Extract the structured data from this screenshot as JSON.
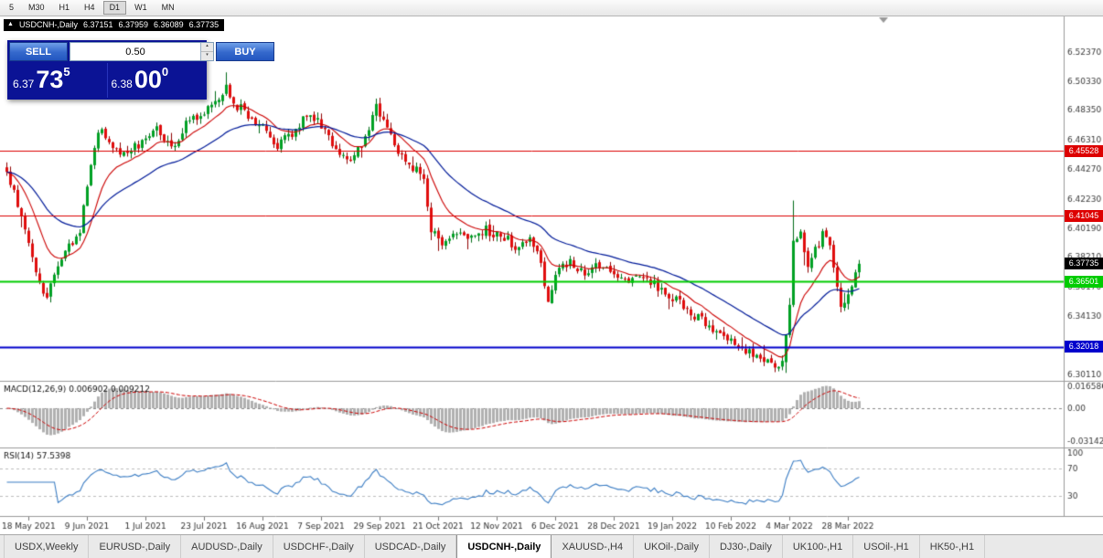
{
  "toolbar": {
    "timeframes": [
      {
        "label": "5"
      },
      {
        "label": "M30"
      },
      {
        "label": "H1"
      },
      {
        "label": "H4"
      },
      {
        "label": "D1",
        "active": true
      },
      {
        "label": "W1"
      },
      {
        "label": "MN"
      }
    ]
  },
  "chart_header": {
    "collapse_icon": "▲",
    "symbol": "USDCNH-,Daily",
    "open": "6.37151",
    "high": "6.37959",
    "low": "6.36089",
    "close": "6.37735"
  },
  "trade_panel": {
    "sell_label": "SELL",
    "buy_label": "BUY",
    "lot": "0.50",
    "spin_up_icon": "▴",
    "spin_down_icon": "▾",
    "sell_price": {
      "prefix": "6.37",
      "big": "73",
      "sup": "5"
    },
    "buy_price": {
      "prefix": "6.38",
      "big": "00",
      "sup": "0"
    }
  },
  "price_axis": {
    "labels": [
      "6.52370",
      "6.50330",
      "6.48350",
      "6.46310",
      "6.44270",
      "6.42230",
      "6.40190",
      "6.38210",
      "6.36170",
      "6.34130",
      "6.32090",
      "6.30110"
    ]
  },
  "hlines": [
    {
      "label": "6.45528",
      "price": 6.45528,
      "color": "#dd0000",
      "width": 1
    },
    {
      "label": "6.41045",
      "price": 6.41045,
      "color": "#dd0000",
      "width": 1
    },
    {
      "label": "6.36501",
      "price": 6.36501,
      "color": "#00cc00",
      "width": 2
    },
    {
      "label": "6.32018",
      "price": 6.32018,
      "color": "#0000cc",
      "width": 2
    }
  ],
  "current_price": {
    "label": "6.37735",
    "price": 6.37735,
    "color": "#000000"
  },
  "macd_panel": {
    "label": "MACD(12,26,9) 0.006902 0.009212",
    "axis_labels": [
      "0.016586",
      "0.00",
      "-0.03142"
    ]
  },
  "rsi_panel": {
    "label": "RSI(14) 57.5398",
    "axis_labels": [
      "100",
      "70",
      "30"
    ]
  },
  "time_axis": {
    "dates": [
      "18 May 2021",
      "9 Jun 2021",
      "1 Jul 2021",
      "23 Jul 2021",
      "16 Aug 2021",
      "7 Sep 2021",
      "29 Sep 2021",
      "21 Oct 2021",
      "12 Nov 2021",
      "6 Dec 2021",
      "28 Dec 2021",
      "19 Jan 2022",
      "10 Feb 2022",
      "4 Mar 2022",
      "28 Mar 2022"
    ]
  },
  "tabs": [
    {
      "label": "USDX,Weekly"
    },
    {
      "label": "EURUSD-,Daily"
    },
    {
      "label": "AUDUSD-,Daily"
    },
    {
      "label": "USDCHF-,Daily"
    },
    {
      "label": "USDCAD-,Daily"
    },
    {
      "label": "USDCNH-,Daily",
      "active": true
    },
    {
      "label": "XAUUSD-,H4"
    },
    {
      "label": "UKOil-,Daily"
    },
    {
      "label": "DJ30-,Daily"
    },
    {
      "label": "UK100-,H1"
    },
    {
      "label": "USOil-,H1"
    },
    {
      "label": "HK50-,H1"
    }
  ],
  "chart_data": {
    "type": "candlestick",
    "symbol": "USDCNH",
    "timeframe": "Daily",
    "candle_count": 234,
    "seed": 42,
    "last_close": 6.37735,
    "price_range": {
      "top": 6.548,
      "bottom": 6.2966
    },
    "up_color": "#00a124",
    "down_color": "#e00d0d",
    "ma_fast": {
      "period": 12,
      "color": "#cc0000"
    },
    "ma_slow": {
      "period": 34,
      "color": "#001a99"
    },
    "spike": {
      "index": 215,
      "high": 6.421
    },
    "date_tick_indices": [
      6,
      22,
      38,
      54,
      70,
      86,
      102,
      118,
      134,
      150,
      166,
      182,
      198,
      214,
      230
    ],
    "anchors": [
      [
        0,
        6.44
      ],
      [
        3,
        6.42
      ],
      [
        6,
        6.395
      ],
      [
        9,
        6.362
      ],
      [
        11,
        6.357
      ],
      [
        14,
        6.377
      ],
      [
        17,
        6.388
      ],
      [
        20,
        6.402
      ],
      [
        22,
        6.432
      ],
      [
        24,
        6.458
      ],
      [
        26,
        6.472
      ],
      [
        29,
        6.455
      ],
      [
        33,
        6.452
      ],
      [
        37,
        6.463
      ],
      [
        41,
        6.472
      ],
      [
        45,
        6.458
      ],
      [
        49,
        6.473
      ],
      [
        53,
        6.479
      ],
      [
        57,
        6.49
      ],
      [
        60,
        6.5
      ],
      [
        62,
        6.488
      ],
      [
        66,
        6.48
      ],
      [
        70,
        6.47
      ],
      [
        74,
        6.459
      ],
      [
        78,
        6.468
      ],
      [
        82,
        6.479
      ],
      [
        86,
        6.473
      ],
      [
        90,
        6.457
      ],
      [
        94,
        6.446
      ],
      [
        98,
        6.466
      ],
      [
        101,
        6.486
      ],
      [
        104,
        6.468
      ],
      [
        108,
        6.45
      ],
      [
        112,
        6.443
      ],
      [
        114,
        6.438
      ],
      [
        116,
        6.4
      ],
      [
        119,
        6.392
      ],
      [
        123,
        6.401
      ],
      [
        127,
        6.396
      ],
      [
        131,
        6.401
      ],
      [
        135,
        6.397
      ],
      [
        139,
        6.39
      ],
      [
        143,
        6.393
      ],
      [
        146,
        6.378
      ],
      [
        148,
        6.352
      ],
      [
        150,
        6.37
      ],
      [
        154,
        6.378
      ],
      [
        158,
        6.371
      ],
      [
        162,
        6.377
      ],
      [
        166,
        6.372
      ],
      [
        170,
        6.364
      ],
      [
        174,
        6.37
      ],
      [
        178,
        6.36
      ],
      [
        182,
        6.354
      ],
      [
        186,
        6.346
      ],
      [
        190,
        6.338
      ],
      [
        194,
        6.331
      ],
      [
        198,
        6.325
      ],
      [
        202,
        6.318
      ],
      [
        206,
        6.312
      ],
      [
        210,
        6.305
      ],
      [
        212,
        6.31
      ],
      [
        214,
        6.352
      ],
      [
        215,
        6.39
      ],
      [
        217,
        6.398
      ],
      [
        219,
        6.378
      ],
      [
        221,
        6.386
      ],
      [
        223,
        6.397
      ],
      [
        225,
        6.388
      ],
      [
        227,
        6.362
      ],
      [
        228,
        6.348
      ],
      [
        230,
        6.356
      ],
      [
        232,
        6.368
      ],
      [
        233,
        6.3773
      ]
    ],
    "macd": {
      "fast": 12,
      "slow": 26,
      "signal": 9,
      "current_main": 0.006902,
      "current_signal": 0.009212
    },
    "rsi": {
      "period": 14,
      "current": 57.5398
    }
  }
}
